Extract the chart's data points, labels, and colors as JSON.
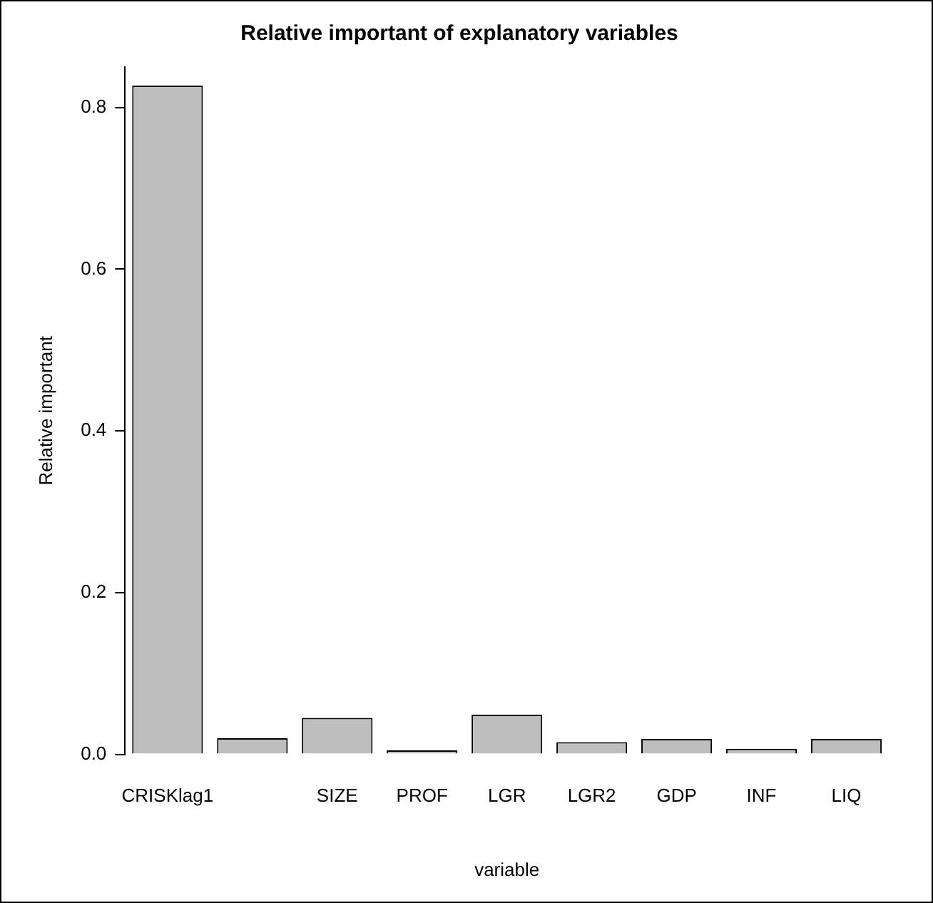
{
  "chart_data": {
    "type": "bar",
    "title": "Relative important of explanatory variables",
    "xlabel": "variable",
    "ylabel": "Relative important",
    "categories": [
      "CRISKlag1",
      null,
      "SIZE",
      "PROF",
      "LGR",
      "LGR2",
      "GDP",
      "INF",
      "LIQ"
    ],
    "values": [
      0.827,
      0.02,
      0.045,
      0.005,
      0.049,
      0.015,
      0.019,
      0.007,
      0.019
    ],
    "color": "#bebebe",
    "ylim": [
      0,
      0.85
    ],
    "yticks": [
      {
        "value": 0,
        "label": "0.0"
      },
      0.2,
      0.4,
      0.6,
      0.8
    ],
    "grid": false,
    "legend": false
  }
}
